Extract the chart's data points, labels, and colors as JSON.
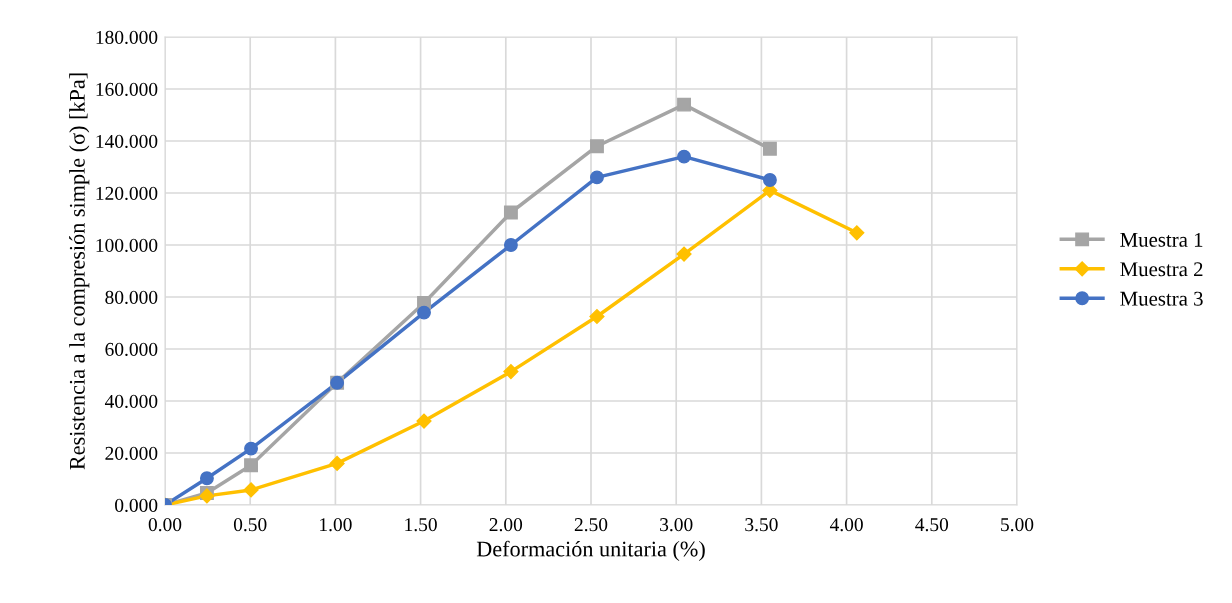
{
  "chart_data": {
    "type": "line",
    "xlabel": "Deformación unitaria (%)",
    "ylabel": "Resistencia a la compresión simple (σ) [kPa]",
    "series": [
      {
        "name": "Muestra 1",
        "color": "#a5a5a5",
        "marker": "square",
        "x": [
          0,
          0.246,
          0.505,
          1.01,
          1.52,
          2.03,
          2.535,
          3.046,
          3.55
        ],
        "values": [
          0,
          4.6,
          15.3,
          47,
          77.7,
          112.5,
          138,
          154,
          137
        ]
      },
      {
        "name": "Muestra 2",
        "color": "#ffc000",
        "marker": "diamond",
        "x": [
          0,
          0.246,
          0.505,
          1.01,
          1.52,
          2.03,
          2.535,
          3.046,
          3.55,
          4.06
        ],
        "values": [
          0,
          3.5,
          5.8,
          16,
          32.3,
          51.3,
          72.5,
          96.5,
          121,
          104.7
        ]
      },
      {
        "name": "Muestra 3",
        "color": "#4472c4",
        "marker": "circle",
        "x": [
          0,
          0.246,
          0.505,
          1.01,
          1.52,
          2.03,
          2.535,
          3.046,
          3.55
        ],
        "values": [
          0,
          10.3,
          21.7,
          47,
          74,
          100,
          126,
          134,
          125
        ]
      }
    ],
    "xlim": [
      0,
      5
    ],
    "xticks": [
      {
        "value": 0,
        "label": "0.00"
      },
      {
        "value": 0.5,
        "label": "0.50"
      },
      {
        "value": 1,
        "label": "1.00"
      },
      {
        "value": 1.5,
        "label": "1.50"
      },
      {
        "value": 2,
        "label": "2.00"
      },
      {
        "value": 2.5,
        "label": "2.50"
      },
      {
        "value": 3,
        "label": "3.00"
      },
      {
        "value": 3.5,
        "label": "3.50"
      },
      {
        "value": 4,
        "label": "4.00"
      },
      {
        "value": 4.5,
        "label": "4.50"
      },
      {
        "value": 5,
        "label": "5.00"
      }
    ],
    "ylim": [
      0,
      180
    ],
    "yticks": [
      {
        "value": 0,
        "label": "0.000"
      },
      {
        "value": 20,
        "label": "20.000"
      },
      {
        "value": 40,
        "label": "40.000"
      },
      {
        "value": 60,
        "label": "60.000"
      },
      {
        "value": 80,
        "label": "80.000"
      },
      {
        "value": 100,
        "label": "100.000"
      },
      {
        "value": 120,
        "label": "120.000"
      },
      {
        "value": 140,
        "label": "140.000"
      },
      {
        "value": 160,
        "label": "160.000"
      },
      {
        "value": 180,
        "label": "180.000"
      }
    ],
    "grid": true,
    "legend": "right",
    "line_style": "solid"
  }
}
